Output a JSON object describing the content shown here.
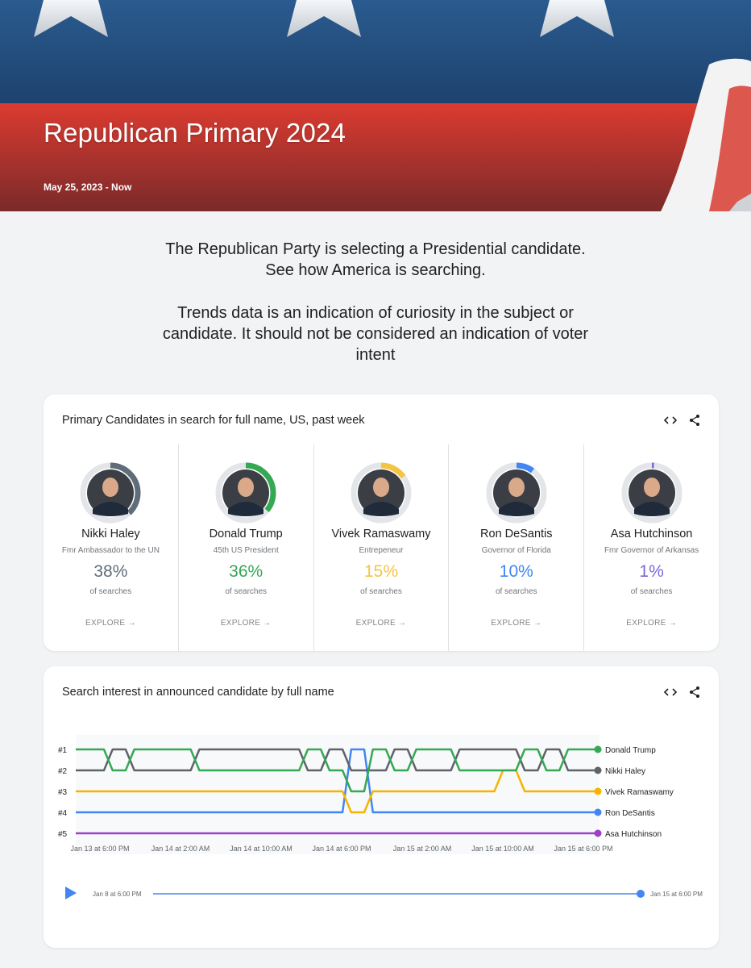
{
  "header": {
    "title": "Republican Primary 2024",
    "date_range": "May 25, 2023 - Now",
    "colors": {
      "blue": "#21497a",
      "red": "#d23a2f"
    }
  },
  "intro": {
    "paragraph1": "The Republican Party is selecting a Presidential candidate. See how America is searching.",
    "paragraph2": "Trends data is an indication of curiosity in the subject or candidate. It should not be considered an indication of voter intent"
  },
  "candidates_card": {
    "title": "Primary Candidates in search for full name, US, past week",
    "embed_icon": "code-icon",
    "share_icon": "share-icon",
    "candidates": [
      {
        "name": "Nikki Haley",
        "role": "Fmr Ambassador to the UN",
        "percent": "38%",
        "value": 38,
        "of_label": "of searches",
        "explore": "EXPLORE",
        "color": "#5f6d7a"
      },
      {
        "name": "Donald Trump",
        "role": "45th US President",
        "percent": "36%",
        "value": 36,
        "of_label": "of searches",
        "explore": "EXPLORE",
        "color": "#34a853"
      },
      {
        "name": "Vivek Ramaswamy",
        "role": "Entrepeneur",
        "percent": "15%",
        "value": 15,
        "of_label": "of searches",
        "explore": "EXPLORE",
        "color": "#f4c542"
      },
      {
        "name": "Ron DeSantis",
        "role": "Governor of Florida",
        "percent": "10%",
        "value": 10,
        "of_label": "of searches",
        "explore": "EXPLORE",
        "color": "#4285f4"
      },
      {
        "name": "Asa Hutchinson",
        "role": "Fmr Governor of Arkansas",
        "percent": "1%",
        "value": 1,
        "of_label": "of searches",
        "explore": "EXPLORE",
        "color": "#7b68d8"
      }
    ]
  },
  "interest_card": {
    "title": "Search interest in announced candidate by full name",
    "embed_icon": "code-icon",
    "share_icon": "share-icon",
    "timeline": {
      "start_label": "Jan 8 at 6:00 PM",
      "end_label": "Jan 15 at 6:00 PM",
      "position": 1.0
    }
  },
  "chart_data": {
    "type": "line",
    "title": "",
    "xlabel": "",
    "ylabel": "",
    "y_ticks": [
      "#1",
      "#2",
      "#3",
      "#4",
      "#5"
    ],
    "x_ticks": [
      "Jan 13 at 6:00 PM",
      "Jan 14 at 2:00 AM",
      "Jan 14 at 10:00 AM",
      "Jan 14 at 6:00 PM",
      "Jan 15 at 2:00 AM",
      "Jan 15 at 10:00 AM",
      "Jan 15 at 6:00 PM"
    ],
    "x": [
      0,
      1,
      2,
      3,
      4,
      5,
      6,
      7,
      8,
      9,
      10,
      11,
      12,
      13,
      14,
      15,
      16,
      17,
      18,
      19,
      20,
      21,
      22,
      23,
      24
    ],
    "series": [
      {
        "name": "Donald Trump",
        "color": "#34a853",
        "values": [
          1,
          1,
          2,
          1,
          1,
          1,
          2,
          2,
          2,
          2,
          2,
          1,
          2,
          3,
          1,
          2,
          1,
          1,
          2,
          2,
          2,
          1,
          2,
          1,
          1
        ]
      },
      {
        "name": "Nikki Haley",
        "color": "#5f6368",
        "values": [
          2,
          2,
          1,
          2,
          2,
          2,
          1,
          1,
          1,
          1,
          1,
          2,
          1,
          2,
          2,
          1,
          2,
          2,
          1,
          1,
          1,
          2,
          1,
          2,
          2
        ]
      },
      {
        "name": "Vivek Ramaswamy",
        "color": "#f4b400",
        "values": [
          3,
          3,
          3,
          3,
          3,
          3,
          3,
          3,
          3,
          3,
          3,
          3,
          3,
          4,
          3,
          3,
          3,
          3,
          3,
          3,
          2,
          3,
          3,
          3,
          3
        ]
      },
      {
        "name": "Ron DeSantis",
        "color": "#4285f4",
        "values": [
          4,
          4,
          4,
          4,
          4,
          4,
          4,
          4,
          4,
          4,
          4,
          4,
          4,
          1,
          4,
          4,
          4,
          4,
          4,
          4,
          4,
          4,
          4,
          4,
          4
        ]
      },
      {
        "name": "Asa Hutchinson",
        "color": "#9c41c6",
        "values": [
          5,
          5,
          5,
          5,
          5,
          5,
          5,
          5,
          5,
          5,
          5,
          5,
          5,
          5,
          5,
          5,
          5,
          5,
          5,
          5,
          5,
          5,
          5,
          5,
          5
        ]
      }
    ],
    "grid": false,
    "legend": "right"
  }
}
